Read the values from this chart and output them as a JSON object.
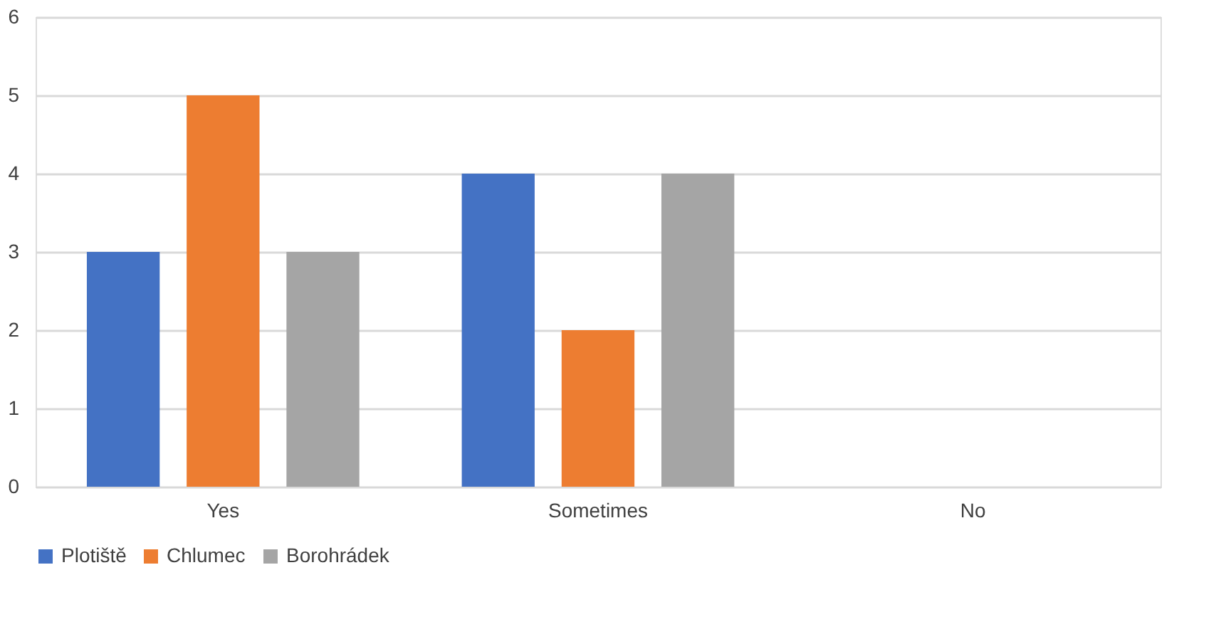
{
  "chart_data": {
    "type": "bar",
    "categories": [
      "Yes",
      "Sometimes",
      "No"
    ],
    "series": [
      {
        "name": "Plotiště",
        "color": "#4472c4",
        "values": [
          3,
          4,
          0
        ]
      },
      {
        "name": "Chlumec",
        "color": "#ed7d31",
        "values": [
          5,
          2,
          0
        ]
      },
      {
        "name": "Borohrádek",
        "color": "#a5a5a5",
        "values": [
          3,
          4,
          0
        ]
      }
    ],
    "ylim": [
      0,
      6
    ],
    "yticks": [
      0,
      1,
      2,
      3,
      4,
      5,
      6
    ],
    "grid": "y",
    "legend": "bottom"
  }
}
